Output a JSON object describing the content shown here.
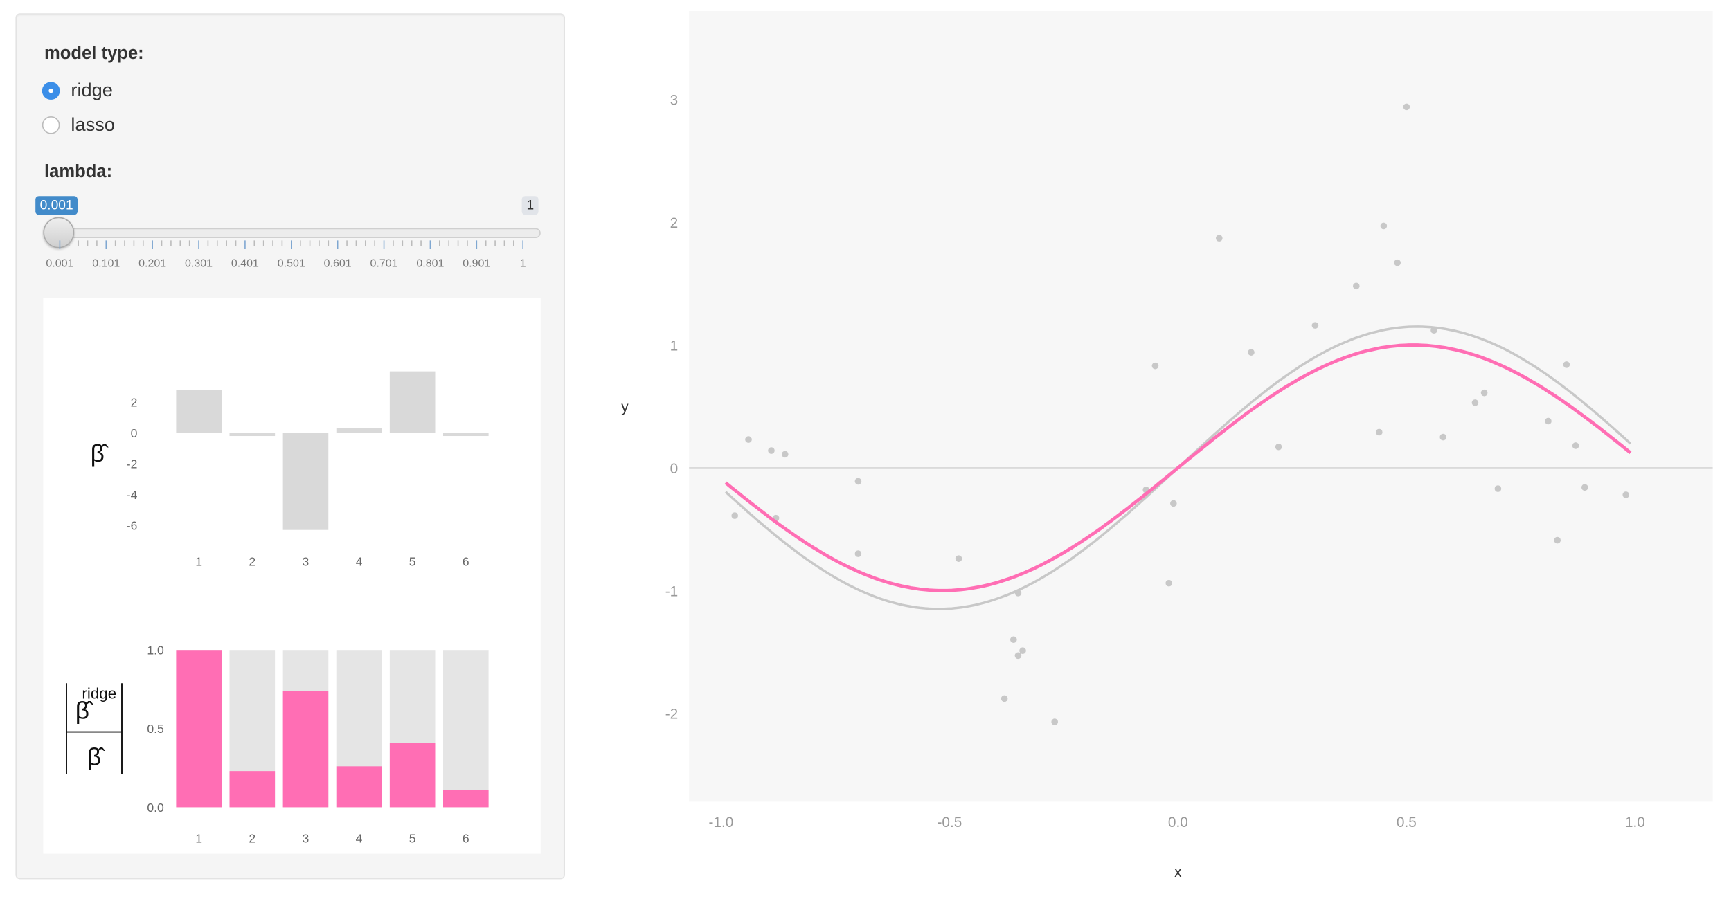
{
  "controls": {
    "model_type_label": "model type:",
    "options": [
      {
        "label": "ridge",
        "selected": true
      },
      {
        "label": "lasso",
        "selected": false
      }
    ],
    "lambda_label": "lambda:",
    "lambda_value": "0.001",
    "lambda_max": "1",
    "tick_labels": [
      "0.001",
      "0.101",
      "0.201",
      "0.301",
      "0.401",
      "0.501",
      "0.601",
      "0.701",
      "0.801",
      "0.901",
      "1"
    ]
  },
  "colors": {
    "accent": "#3b8ee8",
    "slider_bubble": "#428bca",
    "pink": "#ff6eb4",
    "bar_gray": "#d9d9d9",
    "point_gray": "#c8c8c8",
    "true_curve": "#c8c8c8"
  },
  "chart_data": [
    {
      "type": "bar",
      "ylabel": "β̂",
      "categories": [
        "1",
        "2",
        "3",
        "4",
        "5",
        "6"
      ],
      "values": [
        2.8,
        -0.2,
        -6.3,
        0.3,
        4.0,
        -0.2
      ],
      "yticks": [
        2,
        0,
        -2,
        -4,
        -6
      ],
      "ylim": [
        -6.6,
        3.1
      ]
    },
    {
      "type": "bar",
      "ylabel_num": "β̂",
      "ylabel_num_sup": "ridge",
      "ylabel_den": "β̂",
      "categories": [
        "1",
        "2",
        "3",
        "4",
        "5",
        "6"
      ],
      "values": [
        1.0,
        0.23,
        0.74,
        0.26,
        0.41,
        0.11
      ],
      "background_value": 1.0,
      "yticks": [
        "1.0",
        "0.5",
        "0.0"
      ],
      "ylim": [
        0,
        1
      ]
    },
    {
      "type": "scatter",
      "xlabel": "x",
      "ylabel": "y",
      "xlim": [
        -1.07,
        1.17
      ],
      "ylim": [
        -2.72,
        3.72
      ],
      "xticks": [
        "-1.0",
        "-0.5",
        "0.0",
        "0.5",
        "1.0"
      ],
      "yticks": [
        "-2",
        "-1",
        "0",
        "1",
        "2",
        "3"
      ],
      "points": [
        [
          -0.94,
          0.23
        ],
        [
          -0.97,
          -0.39
        ],
        [
          -0.89,
          0.14
        ],
        [
          -0.88,
          -0.41
        ],
        [
          -0.86,
          0.11
        ],
        [
          -0.7,
          -0.11
        ],
        [
          -0.7,
          -0.7
        ],
        [
          -0.48,
          -0.74
        ],
        [
          -0.38,
          -1.88
        ],
        [
          -0.36,
          -1.4
        ],
        [
          -0.35,
          -1.53
        ],
        [
          -0.34,
          -1.49
        ],
        [
          -0.35,
          -1.02
        ],
        [
          -0.27,
          -2.07
        ],
        [
          -0.07,
          -0.18
        ],
        [
          -0.05,
          0.83
        ],
        [
          -0.02,
          -0.94
        ],
        [
          -0.01,
          -0.29
        ],
        [
          0.09,
          1.87
        ],
        [
          0.16,
          0.94
        ],
        [
          0.22,
          0.17
        ],
        [
          0.3,
          1.16
        ],
        [
          0.39,
          1.48
        ],
        [
          0.44,
          0.29
        ],
        [
          0.45,
          1.97
        ],
        [
          0.48,
          1.67
        ],
        [
          0.5,
          2.94
        ],
        [
          0.56,
          1.12
        ],
        [
          0.58,
          0.25
        ],
        [
          0.65,
          0.53
        ],
        [
          0.67,
          0.61
        ],
        [
          0.7,
          -0.17
        ],
        [
          0.81,
          0.38
        ],
        [
          0.83,
          -0.59
        ],
        [
          0.85,
          0.84
        ],
        [
          0.87,
          0.18
        ],
        [
          0.89,
          -0.16
        ],
        [
          0.98,
          -0.22
        ]
      ],
      "series": [
        {
          "name": "true",
          "color": "#c8c8c8",
          "fn": "1.15*sin(3*x)"
        },
        {
          "name": "ridge",
          "color": "#ff6eb4",
          "fn": "1.0*sin(3.05*x)"
        }
      ]
    }
  ]
}
